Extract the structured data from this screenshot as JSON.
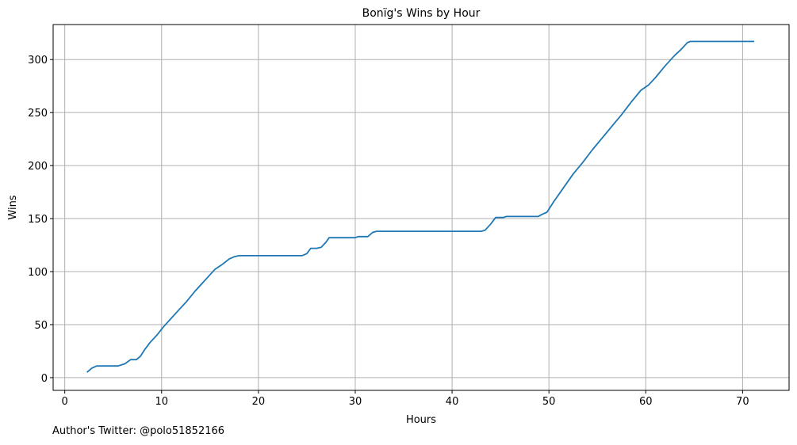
{
  "chart_data": {
    "type": "line",
    "title": "Bonïg's Wins by Hour",
    "xlabel": "Hours",
    "ylabel": "Wins",
    "xlim": [
      -1.2,
      74.8
    ],
    "ylim": [
      -12,
      333
    ],
    "xticks": [
      0,
      10,
      20,
      30,
      40,
      50,
      60,
      70
    ],
    "yticks": [
      0,
      50,
      100,
      150,
      200,
      250,
      300
    ],
    "grid": true,
    "line_color": "#1f77b4",
    "series": [
      {
        "x": [
          2.3,
          2.8,
          3.3,
          3.8,
          4.5,
          5.5,
          6.2,
          6.8,
          7.4,
          7.8,
          8.3,
          8.8,
          9.5,
          10.2,
          11.0,
          11.8,
          12.5,
          13.5,
          14.5,
          15.5,
          16.3,
          17.0,
          17.5,
          18.0,
          20.0,
          22.0,
          24.5,
          25.0,
          25.4,
          26.0,
          26.5,
          27.0,
          27.3,
          28.5,
          30.0,
          30.3,
          31.3,
          31.8,
          32.2,
          35.0,
          40.0,
          43.0,
          43.4,
          44.0,
          44.5,
          45.3,
          45.6,
          48.9,
          49.3,
          49.8,
          50.5,
          51.5,
          52.5,
          53.5,
          54.5,
          55.5,
          56.5,
          57.5,
          58.5,
          59.5,
          60.3,
          61.0,
          62.0,
          63.0,
          63.6,
          64.3,
          64.6,
          65.0,
          67.0,
          69.0,
          71.2
        ],
        "y": [
          5,
          9,
          11,
          11,
          11,
          11,
          13,
          17,
          17,
          20,
          27,
          33,
          40,
          48,
          56,
          64,
          71,
          82,
          92,
          102,
          107,
          112,
          114,
          115,
          115,
          115,
          115,
          117,
          122,
          122,
          123,
          128,
          132,
          132,
          132,
          133,
          133,
          137,
          138,
          138,
          138,
          138,
          139,
          145,
          151,
          151,
          152,
          152,
          154,
          156,
          166,
          179,
          192,
          203,
          215,
          226,
          237,
          248,
          260,
          271,
          276,
          283,
          294,
          304,
          309,
          316,
          317,
          317,
          317,
          317,
          317
        ]
      }
    ]
  },
  "footer": {
    "credit": "Author's Twitter: @polo51852166"
  }
}
